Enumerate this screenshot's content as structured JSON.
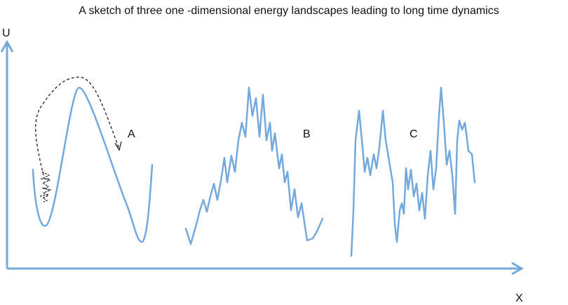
{
  "title": "A sketch of three one -dimensional energy landscapes leading to long time dynamics",
  "axes": {
    "y_label": "U",
    "x_label": "X"
  },
  "landscapes": [
    {
      "label": "A"
    },
    {
      "label": "B"
    },
    {
      "label": "C"
    }
  ]
}
